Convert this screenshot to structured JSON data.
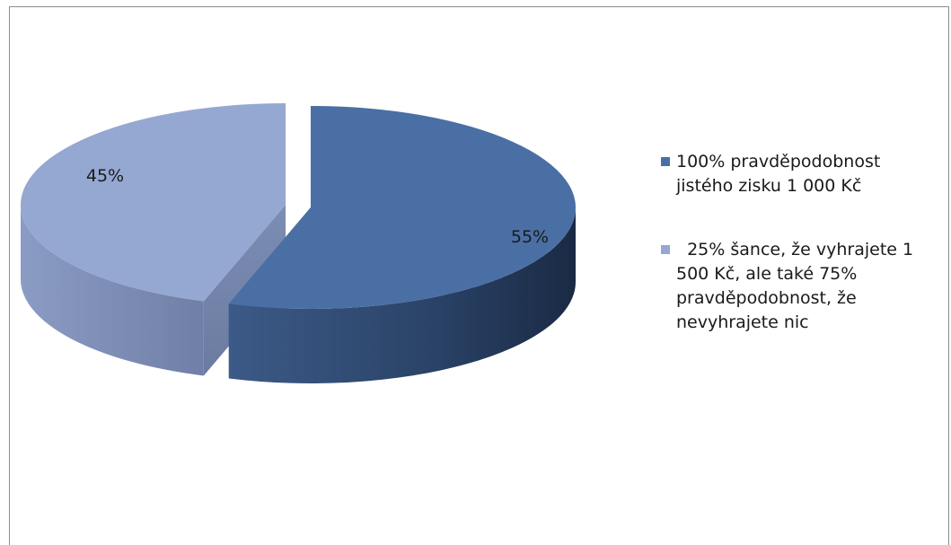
{
  "chart_data": {
    "type": "pie",
    "title": "",
    "categories": [
      "100% pravděpodobnost jistého zisku 1 000 Kč",
      "  25% šance, že vyhrajete 1 500 Kč, ale také 75% pravděpodobnost, že nevyhrajete nic"
    ],
    "values": [
      55,
      45
    ],
    "data_labels": [
      "55%",
      "45%"
    ],
    "colors": [
      "#4a6fa5",
      "#95a8d1"
    ],
    "exploded": true,
    "three_d": true,
    "legend_position": "right"
  }
}
